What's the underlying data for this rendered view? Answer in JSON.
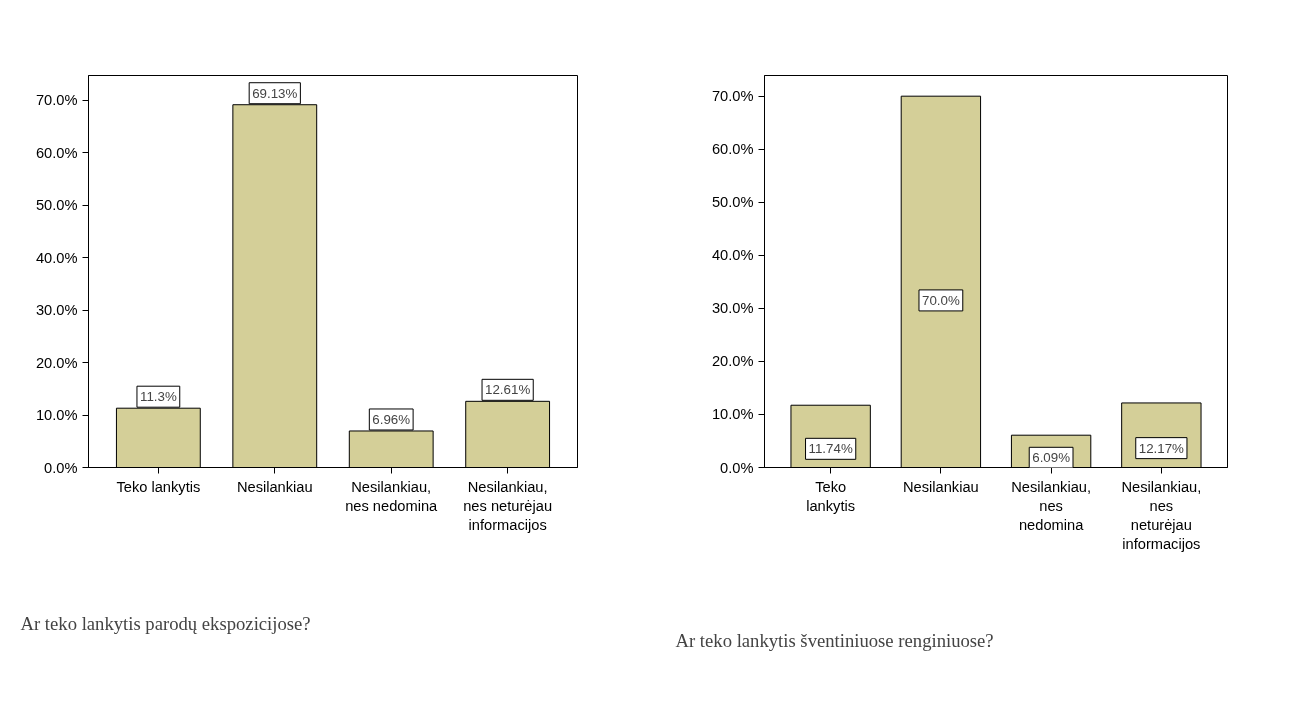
{
  "chart_data": [
    {
      "type": "bar",
      "title": "Ar teko lankytis parodų ekspozicijose?",
      "categories": [
        "Teko lankytis",
        "Nesilankiau",
        "Nesilankiau, nes nedomina",
        "Nesilankiau, nes neturėjau informacijos"
      ],
      "values": [
        11.3,
        69.13,
        6.96,
        12.61
      ],
      "value_labels": [
        "11.3%",
        "69.13%",
        "6.96%",
        "12.61%"
      ],
      "color": "#d4cf98",
      "ylim": [
        0,
        74.7
      ],
      "yticks": [
        {
          "value": 0,
          "label": "0.0%"
        },
        {
          "value": 10,
          "label": "10.0%"
        },
        {
          "value": 20,
          "label": "20.0%"
        },
        {
          "value": 30,
          "label": "30.0%"
        },
        {
          "value": 40,
          "label": "40.0%"
        },
        {
          "value": 50,
          "label": "50.0%"
        },
        {
          "value": 60,
          "label": "60.0%"
        },
        {
          "value": 70,
          "label": "70.0%"
        }
      ],
      "grid": false
    },
    {
      "type": "bar",
      "title": "Ar teko lankytis šventiniuose renginiuose?",
      "categories": [
        "Teko lankytis",
        "Nesilankiau",
        "Nesilankiau, nes nedomina",
        "Nesilankiau, nes neturėjau informacijos"
      ],
      "values": [
        11.74,
        70.0,
        6.09,
        12.17
      ],
      "value_labels": [
        "11.74%",
        "70.0%",
        "6.09%",
        "12.17%"
      ],
      "color": "#d4cf98",
      "ylim": [
        0,
        73.9
      ],
      "yticks": [
        {
          "value": 0,
          "label": "0.0%"
        },
        {
          "value": 10,
          "label": "10.0%"
        },
        {
          "value": 20,
          "label": "20.0%"
        },
        {
          "value": 30,
          "label": "30.0%"
        },
        {
          "value": 40,
          "label": "40.0%"
        },
        {
          "value": 50,
          "label": "50.0%"
        },
        {
          "value": 60,
          "label": "60.0%"
        },
        {
          "value": 70,
          "label": "70.0%"
        }
      ],
      "grid": false
    }
  ]
}
